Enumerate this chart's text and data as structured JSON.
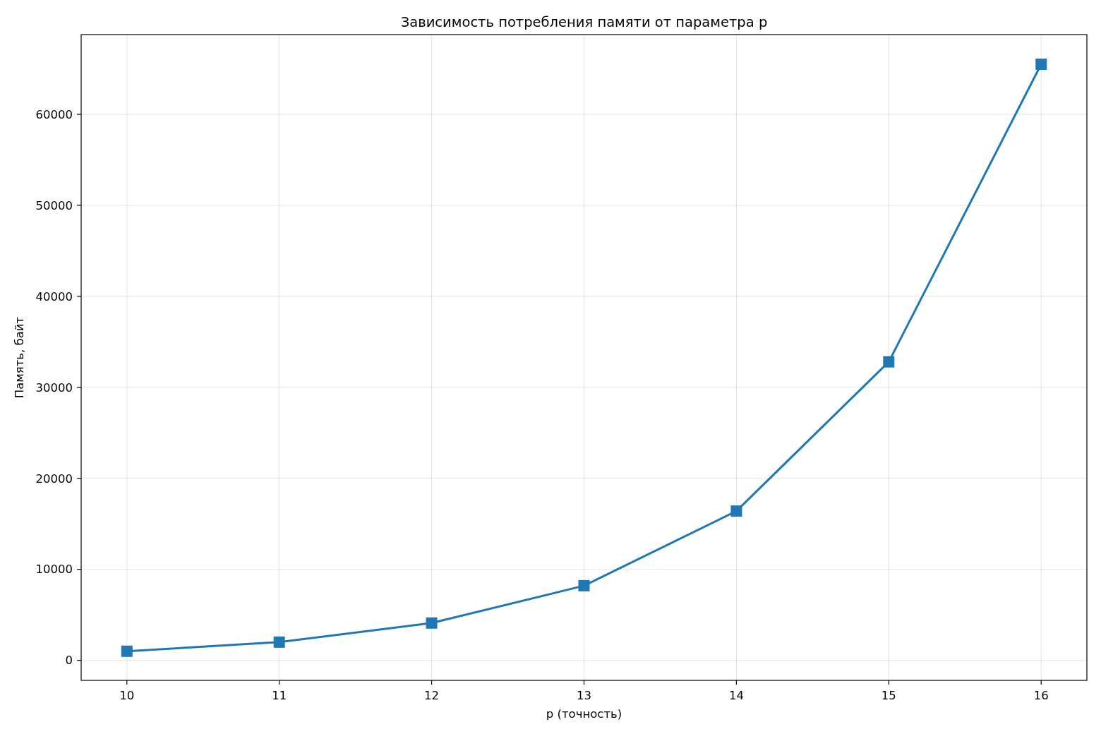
{
  "chart_data": {
    "type": "line",
    "title": "Зависимость потребления памяти от параметра p",
    "xlabel": "p (точность)",
    "ylabel": "Память, байт",
    "x": [
      10,
      11,
      12,
      13,
      14,
      15,
      16
    ],
    "series": [
      {
        "color": "#1f77b4",
        "values": [
          1000,
          2000,
          4100,
          8200,
          16400,
          32800,
          65500
        ]
      }
    ],
    "xlim": [
      9.7,
      16.3
    ],
    "xticks": [
      10,
      11,
      12,
      13,
      14,
      15,
      16
    ],
    "ylim": [
      -2200,
      68760
    ],
    "yticks": [
      0,
      10000,
      20000,
      30000,
      40000,
      50000,
      60000
    ],
    "grid": true,
    "marker": "square",
    "line_style": "solid"
  }
}
